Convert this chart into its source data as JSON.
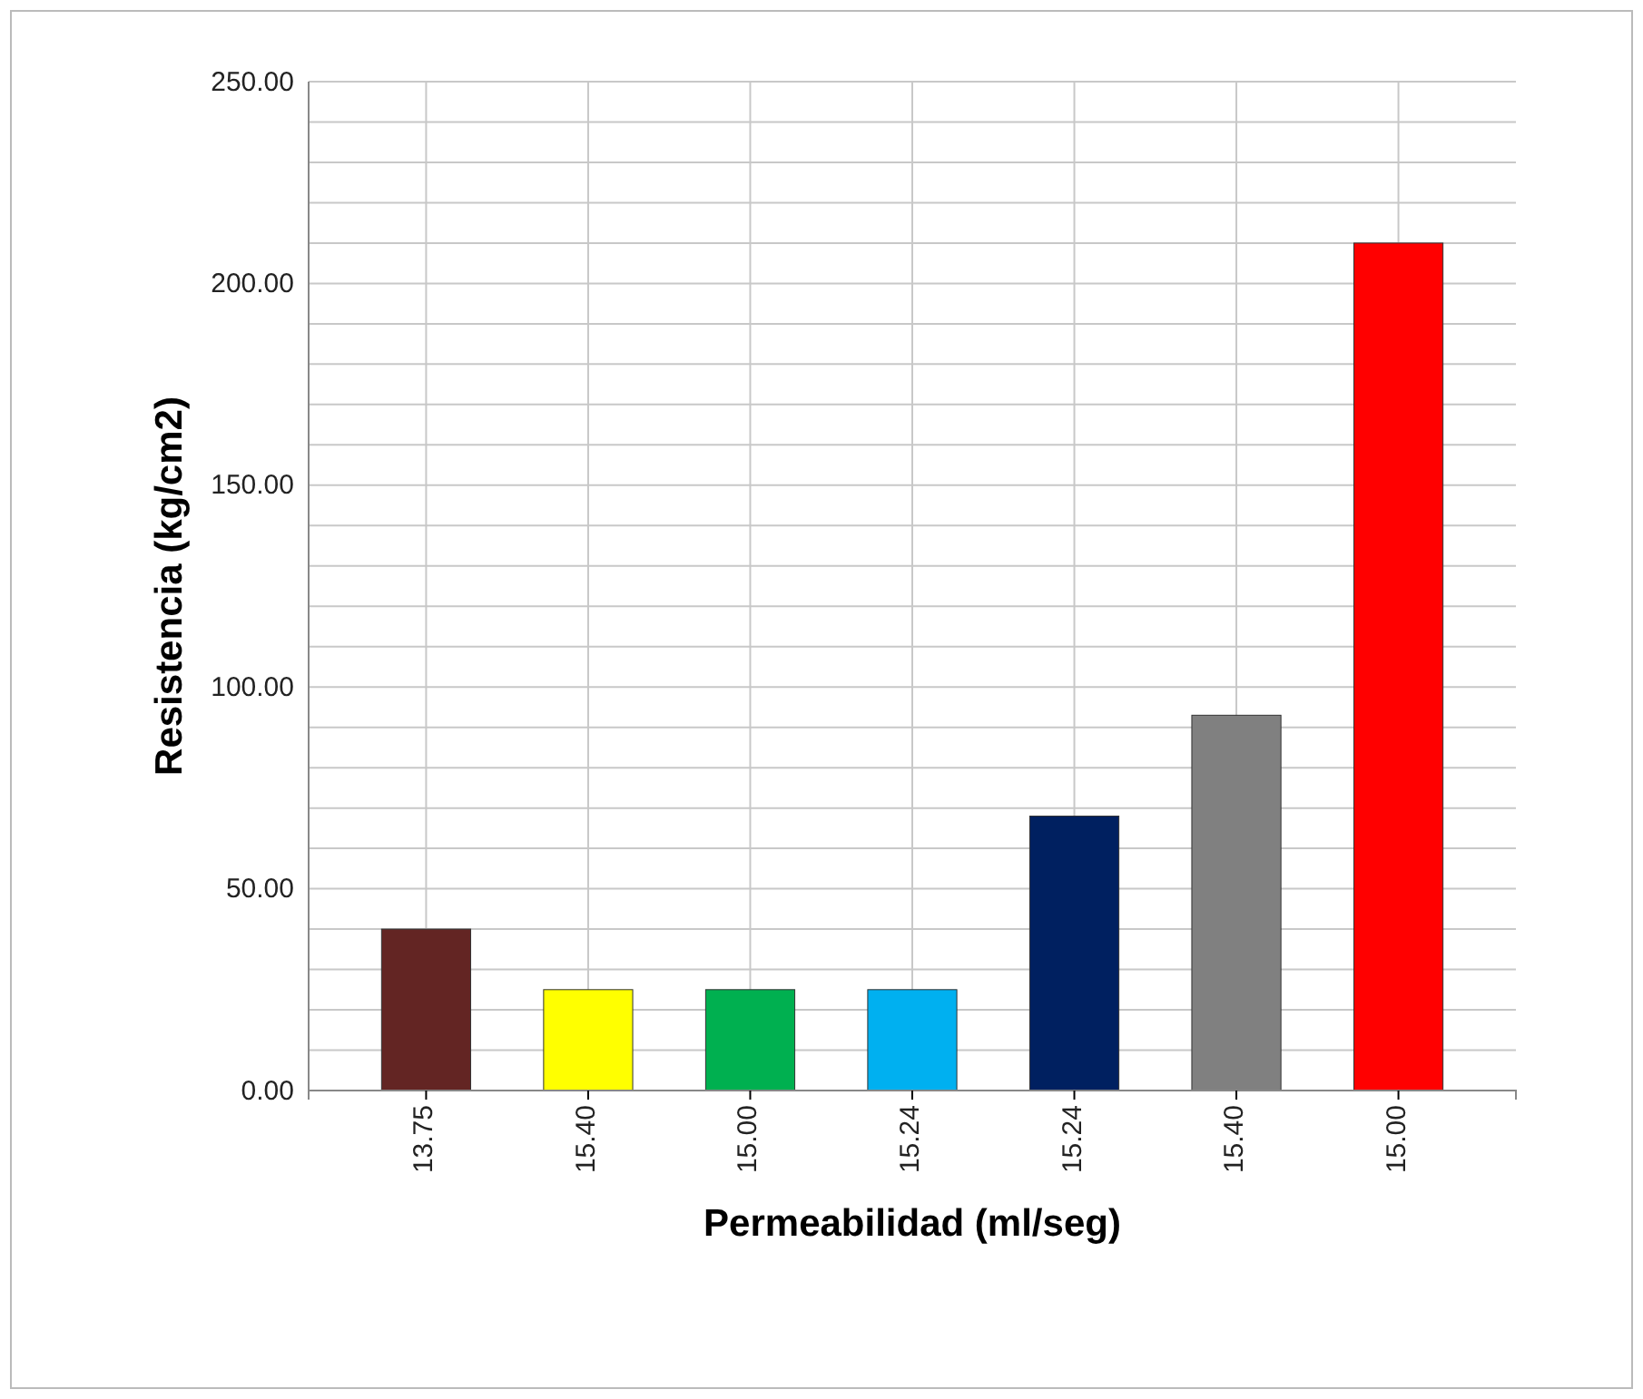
{
  "chart_data": {
    "type": "bar",
    "xlabel": "Permeabilidad (ml/seg)",
    "ylabel": "Resistencia (kg/cm2)",
    "categories": [
      "13.75",
      "15.40",
      "15.00",
      "15.24",
      "15.24",
      "15.40",
      "15.00"
    ],
    "values": [
      40,
      25,
      25,
      25,
      68,
      93,
      210
    ],
    "colors": [
      "#632523",
      "#ffff00",
      "#00b050",
      "#00b0f0",
      "#002060",
      "#808080",
      "#ff0000"
    ],
    "ylim": [
      0,
      250
    ],
    "yticks": [
      {
        "value": 0,
        "label": "0.00"
      },
      {
        "value": 10,
        "label": null
      },
      {
        "value": 20,
        "label": null
      },
      {
        "value": 30,
        "label": null
      },
      {
        "value": 40,
        "label": null
      },
      {
        "value": 50,
        "label": "50.00"
      },
      {
        "value": 60,
        "label": null
      },
      {
        "value": 70,
        "label": null
      },
      {
        "value": 80,
        "label": null
      },
      {
        "value": 90,
        "label": null
      },
      {
        "value": 100,
        "label": "100.00"
      },
      {
        "value": 110,
        "label": null
      },
      {
        "value": 120,
        "label": null
      },
      {
        "value": 130,
        "label": null
      },
      {
        "value": 140,
        "label": null
      },
      {
        "value": 150,
        "label": "150.00"
      },
      {
        "value": 160,
        "label": null
      },
      {
        "value": 170,
        "label": null
      },
      {
        "value": 180,
        "label": null
      },
      {
        "value": 190,
        "label": null
      },
      {
        "value": 200,
        "label": "200.00"
      },
      {
        "value": 210,
        "label": null
      },
      {
        "value": 220,
        "label": null
      },
      {
        "value": 230,
        "label": null
      },
      {
        "value": 240,
        "label": null
      },
      {
        "value": 250,
        "label": "250.00"
      }
    ],
    "grid": true
  }
}
